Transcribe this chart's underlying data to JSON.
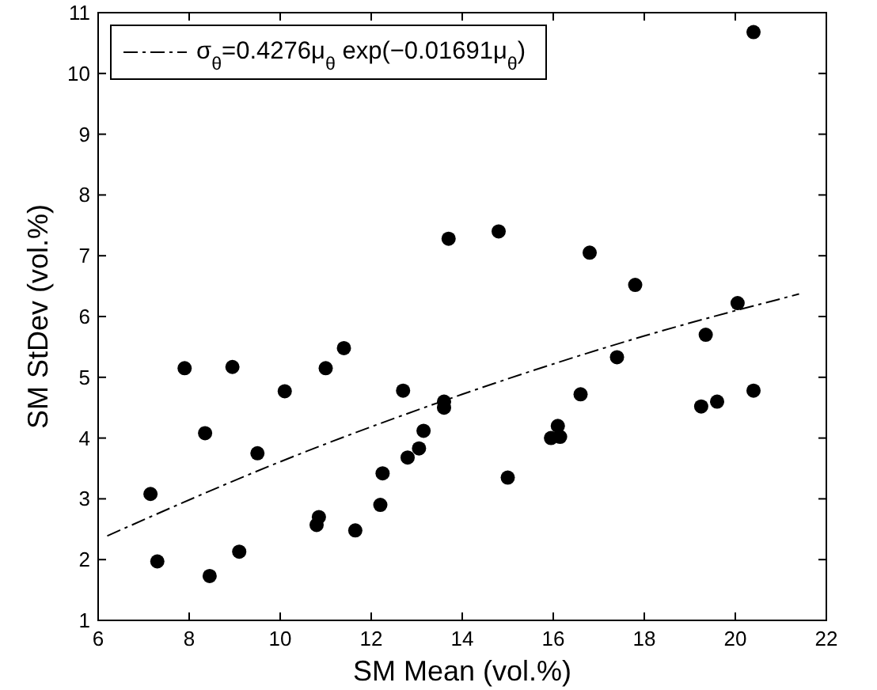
{
  "chart_data": {
    "type": "scatter",
    "xlabel": "SM Mean (vol.%)",
    "ylabel": "SM StDev (vol.%)",
    "xlim": [
      6,
      22
    ],
    "ylim": [
      1,
      11
    ],
    "xticks": [
      6,
      8,
      10,
      12,
      14,
      16,
      18,
      20,
      22
    ],
    "yticks": [
      1,
      2,
      3,
      4,
      5,
      6,
      7,
      8,
      9,
      10,
      11
    ],
    "legend": "top left",
    "grid": false,
    "series": [
      {
        "color": "#000000",
        "marker": "circle",
        "x": [
          7.15,
          7.3,
          7.9,
          8.35,
          8.45,
          8.95,
          9.1,
          9.5,
          10.1,
          10.8,
          10.85,
          11.0,
          11.4,
          11.65,
          12.2,
          12.25,
          12.7,
          12.8,
          13.05,
          13.15,
          13.6,
          13.6,
          13.7,
          14.8,
          15.0,
          15.95,
          16.1,
          16.15,
          16.6,
          16.8,
          17.4,
          17.8,
          19.25,
          19.35,
          19.6,
          20.05,
          20.4,
          20.4
        ],
        "values": [
          3.08,
          1.97,
          5.15,
          4.08,
          1.73,
          5.17,
          2.13,
          3.75,
          4.77,
          2.57,
          2.7,
          5.15,
          5.48,
          2.48,
          2.9,
          3.42,
          4.78,
          3.68,
          3.83,
          4.12,
          4.6,
          4.5,
          7.28,
          7.4,
          3.35,
          4.0,
          4.2,
          4.02,
          4.72,
          7.05,
          5.33,
          6.52,
          4.52,
          5.7,
          4.6,
          6.22,
          4.78,
          10.68
        ]
      },
      {
        "type": "line",
        "name": "σ$_{θ}$=0.4276μ$_{θ}$ exp(−0.01691μ$_{θ}$)",
        "color": "#000000",
        "marker": "none",
        "line_style": "dashed",
        "x": [
          6.2,
          10,
          14,
          18,
          21.4
        ],
        "values": [
          2.39,
          3.61,
          4.72,
          5.68,
          6.37
        ]
      }
    ]
  }
}
